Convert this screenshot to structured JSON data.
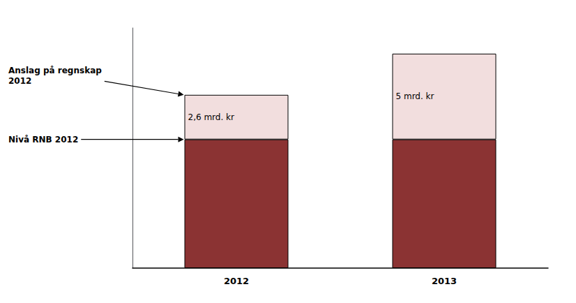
{
  "chart_data": {
    "type": "bar",
    "stacked": true,
    "categories": [
      "2012",
      "2013"
    ],
    "series": [
      {
        "color": "#8B3333",
        "values": [
          7.5,
          7.5
        ]
      },
      {
        "color": "#F2DEDE",
        "values": [
          2.6,
          5.0
        ],
        "value_labels": [
          "2,6 mrd. kr",
          "5 mrd. kr"
        ]
      }
    ],
    "ylim": [
      0,
      14
    ],
    "tick_labels": "x",
    "grid": false,
    "annotations": [
      {
        "text": "Anslag på regnskap\n2012",
        "x": "2012",
        "y": 10.1
      },
      {
        "text": "Nivå RNB 2012",
        "x": "2012",
        "y": 7.5
      }
    ]
  }
}
